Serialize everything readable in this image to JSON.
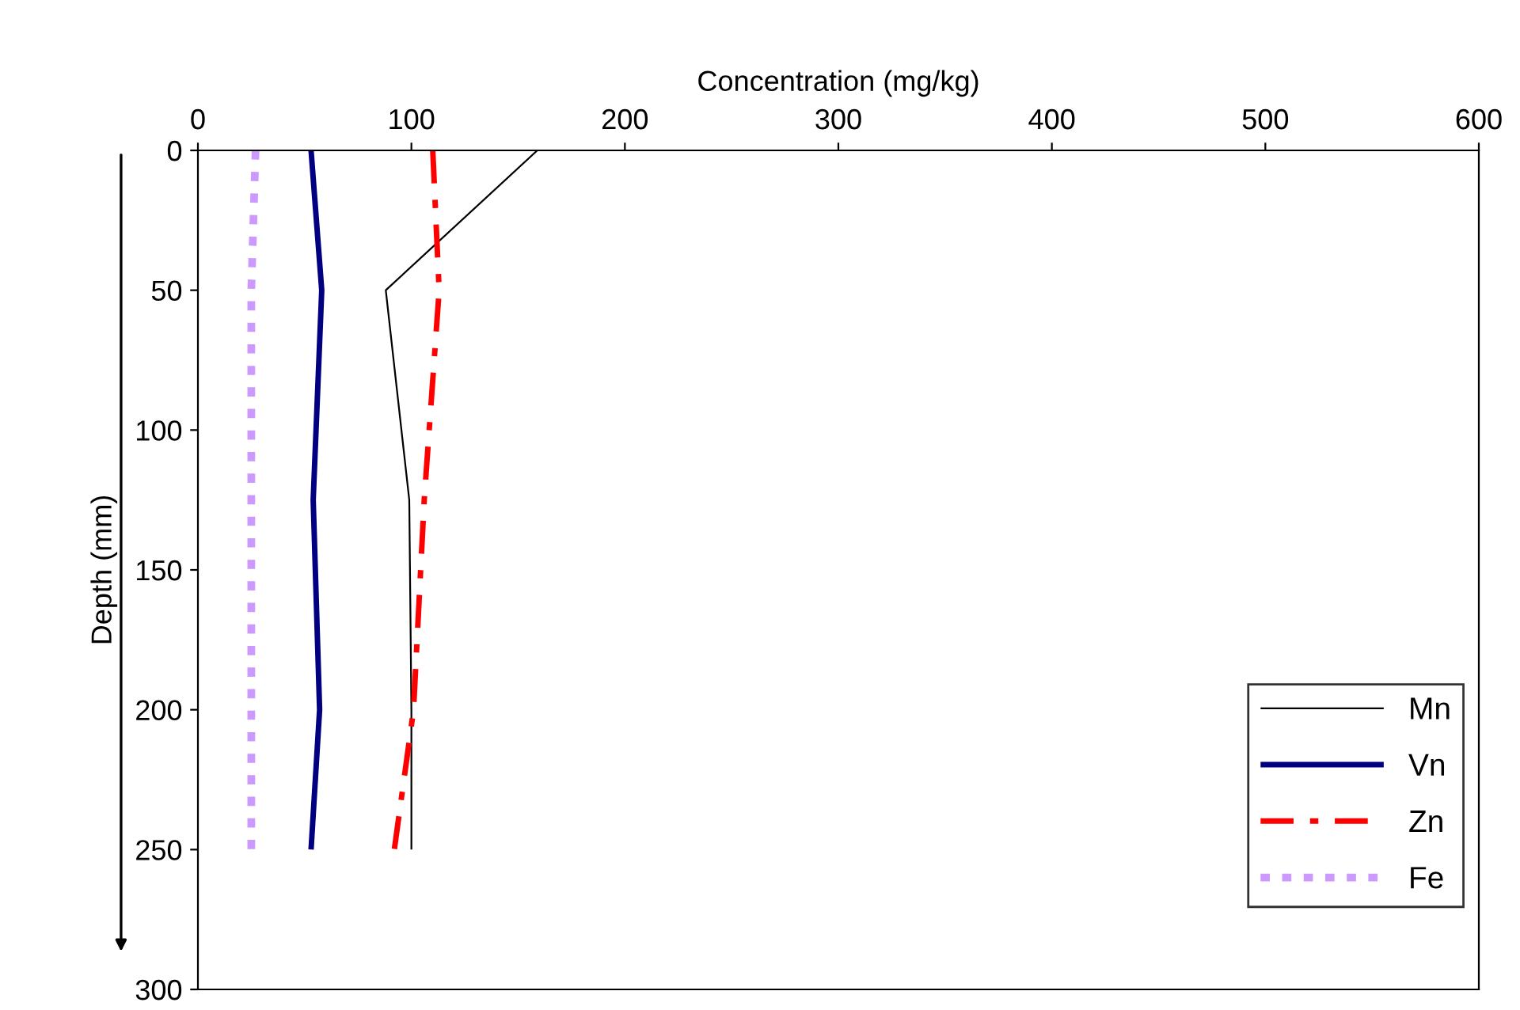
{
  "chart_data": {
    "type": "line",
    "xlabel": "Concentration (mg/kg)",
    "ylabel": "Depth (mm)",
    "xlim": [
      0,
      600
    ],
    "xticks": [
      0,
      100,
      200,
      300,
      400,
      500,
      600
    ],
    "ylim": [
      300,
      0
    ],
    "yticks": [
      0,
      50,
      100,
      150,
      200,
      250,
      300
    ],
    "grid": false,
    "legend": "bottom right",
    "marker": "none",
    "series": [
      {
        "name": "Mn",
        "color": "#000000",
        "line_style": "solid",
        "x": [
          159,
          88,
          99,
          100,
          100
        ],
        "values": [
          0,
          50,
          125,
          200,
          250
        ]
      },
      {
        "name": "Vn",
        "color": "#000080",
        "line_style": "solid",
        "x": [
          53,
          58,
          54,
          57,
          53
        ],
        "values": [
          0,
          50,
          125,
          200,
          250
        ]
      },
      {
        "name": "Zn",
        "color": "#ff0000",
        "line_style": "dashdot",
        "x": [
          110,
          113,
          106,
          101,
          92
        ],
        "values": [
          0,
          50,
          125,
          200,
          250
        ]
      },
      {
        "name": "Fe",
        "color": "#cc99ff",
        "line_style": "dotted",
        "x": [
          27,
          25,
          25,
          25,
          25
        ],
        "values": [
          0,
          50,
          125,
          200,
          250
        ]
      }
    ]
  }
}
